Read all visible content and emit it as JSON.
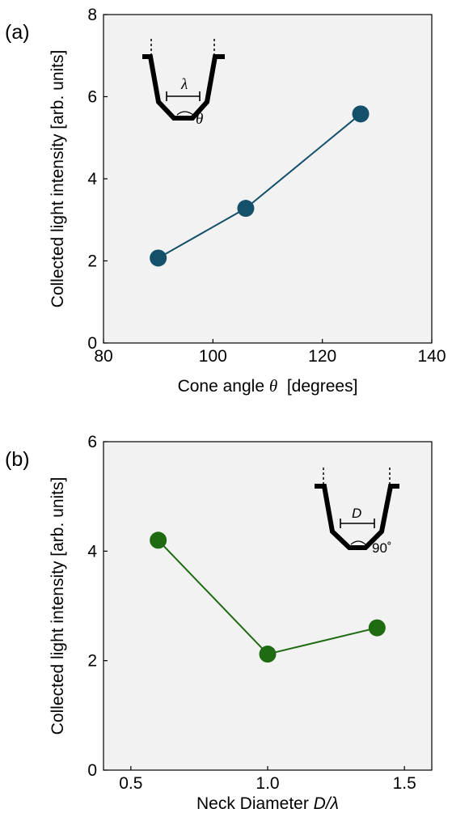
{
  "chart_data": [
    {
      "type": "line",
      "panel_label": "(a)",
      "x": [
        90,
        106,
        127
      ],
      "series": [
        {
          "values": [
            2.07,
            3.28,
            5.58
          ],
          "color": "#14506a"
        }
      ],
      "xlabel_prefix": "Cone angle ",
      "xlabel_symbol": "θ",
      "xlabel_suffix": "  [degrees]",
      "ylabel": "Collected light intensity  [arb. units]",
      "xlim": [
        80,
        140
      ],
      "ylim": [
        0,
        8
      ],
      "xticks": [
        80,
        100,
        120,
        140
      ],
      "yticks": [
        0,
        2,
        4,
        6,
        8
      ],
      "grid": false,
      "inset": {
        "width_label": "λ",
        "angle_label": "θ"
      }
    },
    {
      "type": "line",
      "panel_label": "(b)",
      "x": [
        0.6,
        1.0,
        1.4
      ],
      "series": [
        {
          "values": [
            4.2,
            2.12,
            2.6
          ],
          "color": "#1e6b12"
        }
      ],
      "xlabel_prefix": "Neck Diameter ",
      "xlabel_symbol": "D/λ",
      "xlabel_suffix": "",
      "ylabel": "Collected light intensity  [arb. units]",
      "xlim": [
        0.4,
        1.6
      ],
      "ylim": [
        0,
        6
      ],
      "xticks": [
        "0.5",
        "1.0",
        "1.5"
      ],
      "yticks": [
        0,
        2,
        4,
        6
      ],
      "grid": false,
      "inset": {
        "width_label": "D",
        "angle_label": "90˚"
      }
    }
  ]
}
